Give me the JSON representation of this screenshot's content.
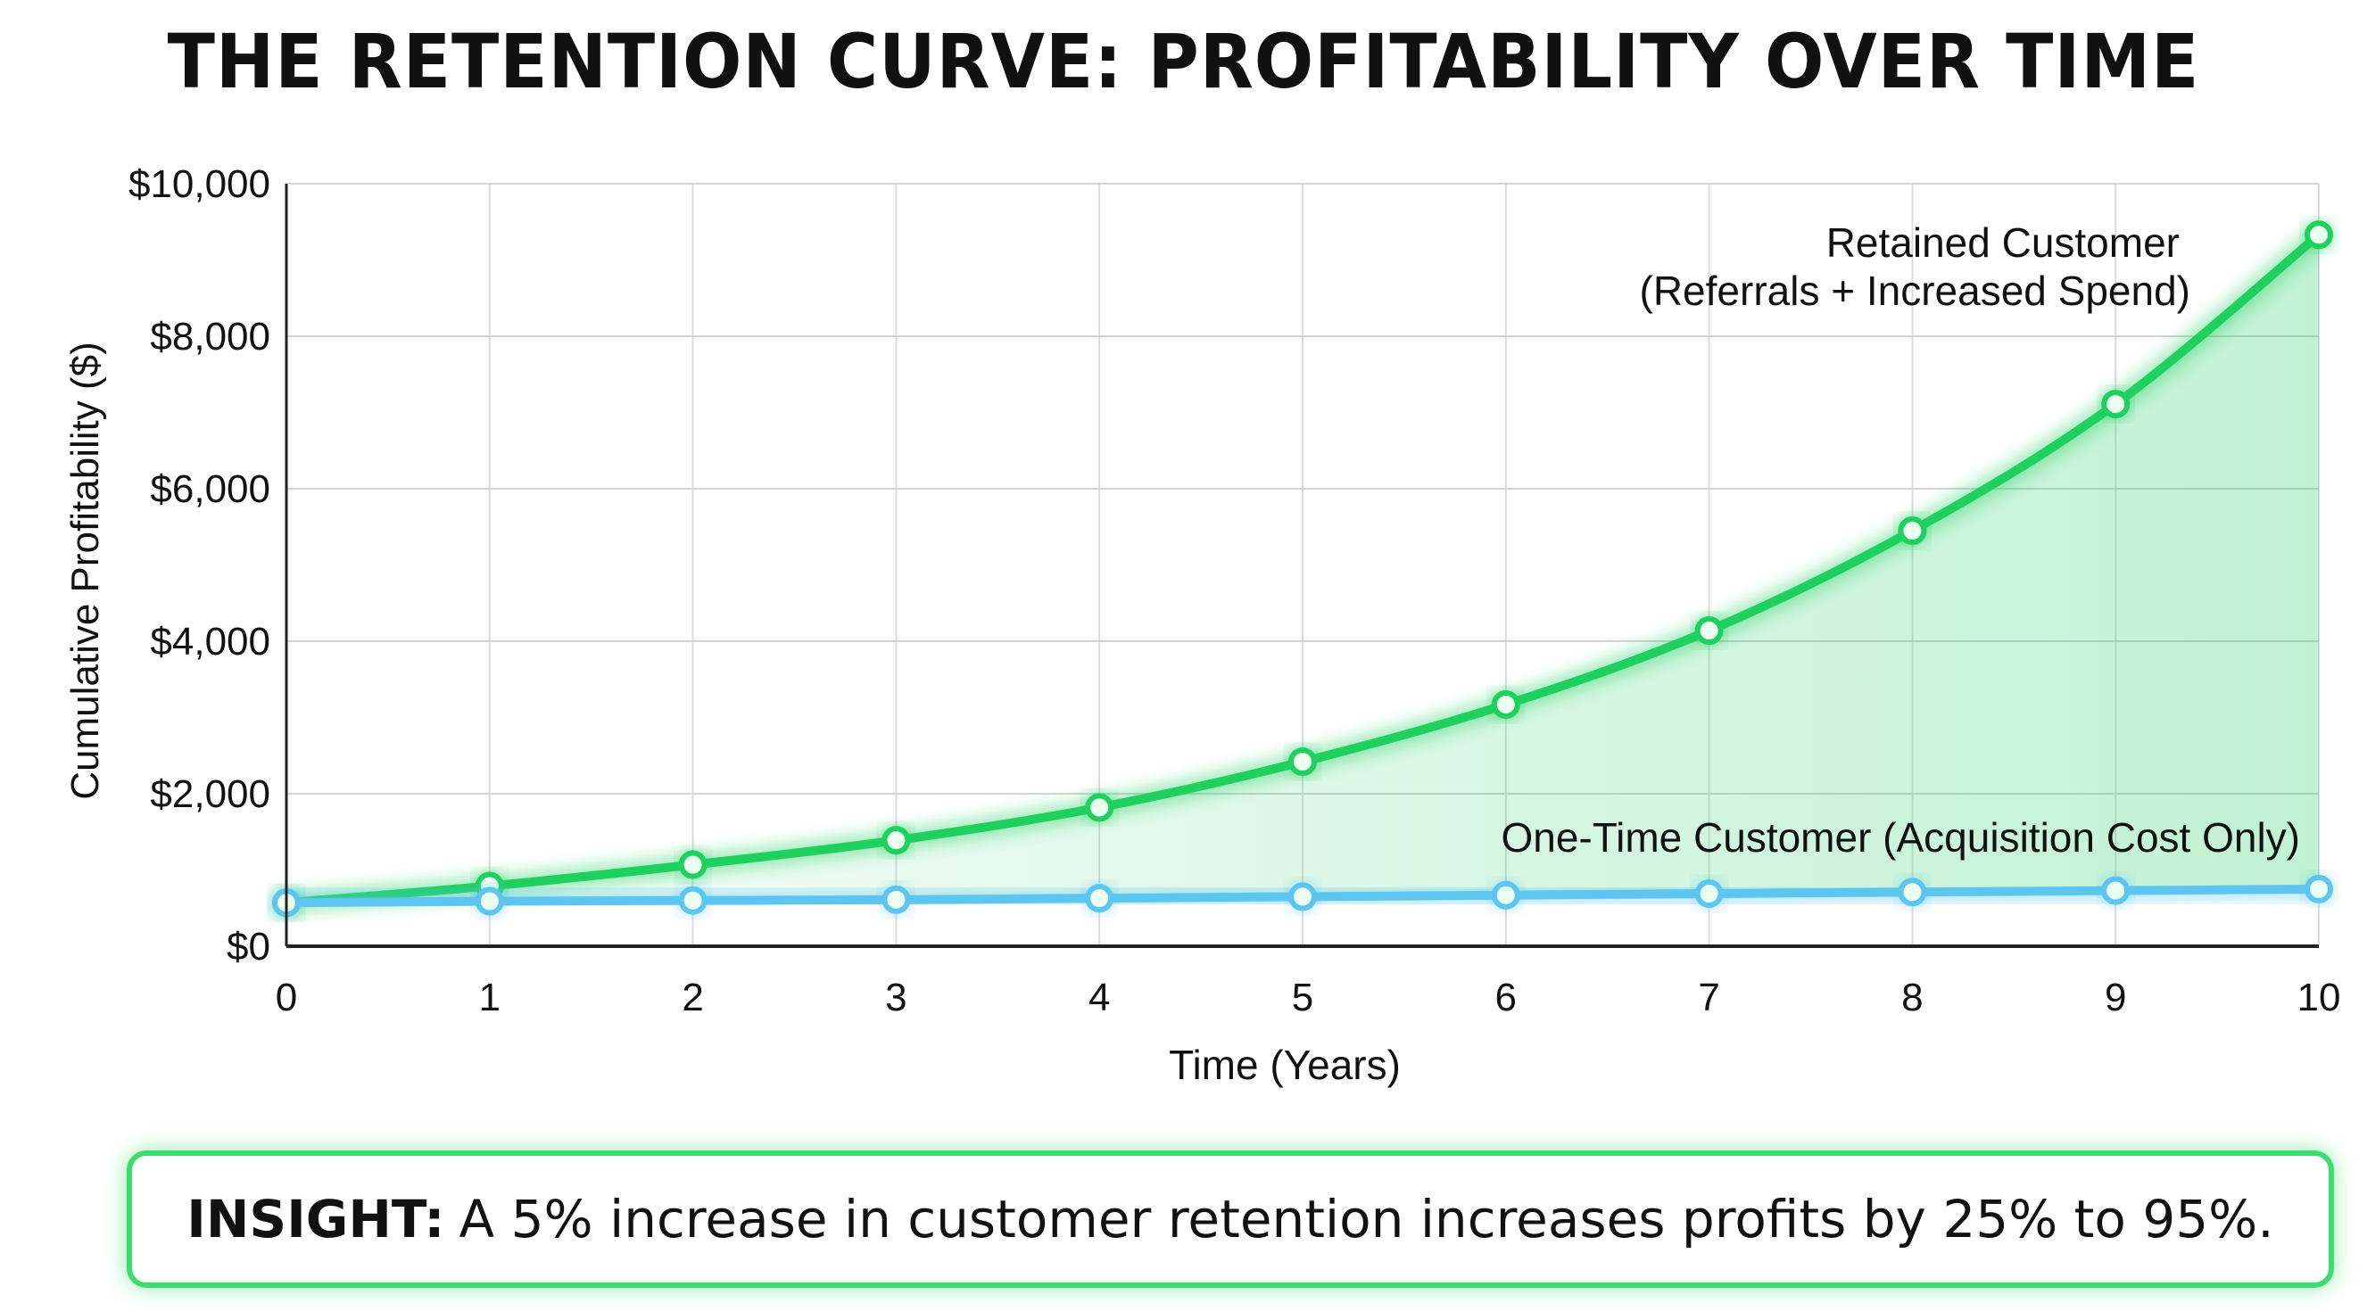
{
  "chart_data": {
    "type": "line",
    "title": "THE RETENTION CURVE: PROFITABILITY OVER TIME",
    "xlabel": "Time (Years)",
    "ylabel": "Cumulative Profitability ($)",
    "x": [
      0,
      1,
      2,
      3,
      4,
      5,
      6,
      7,
      8,
      9,
      10
    ],
    "xlim": [
      0,
      10
    ],
    "ylim": [
      0,
      10000
    ],
    "yticks": [
      0,
      2000,
      4000,
      6000,
      8000,
      10000
    ],
    "ytick_labels": [
      "$0",
      "$2,000",
      "$4,000",
      "$6,000",
      "$8,000",
      "$10,000"
    ],
    "xtick_labels": [
      "0",
      "1",
      "2",
      "3",
      "4",
      "5",
      "6",
      "7",
      "8",
      "9",
      "10"
    ],
    "grid": true,
    "series": [
      {
        "name": "Retained Customer (Referrals + Increased Spend)",
        "label_line1": "Retained Customer",
        "label_line2": "(Referrals + Increased Spend)",
        "color": "#1fd05f",
        "values": [
          570,
          790,
          1070,
          1390,
          1820,
          2420,
          3170,
          4140,
          5450,
          7110,
          9330
        ]
      },
      {
        "name": "One-Time Customer (Acquisition Cost Only)",
        "label_line1": "One-Time Customer (Acquisition Cost Only)",
        "color": "#5cc6f0",
        "values": [
          570,
          590,
          600,
          610,
          630,
          650,
          670,
          690,
          710,
          730,
          750
        ]
      }
    ]
  },
  "insight": {
    "label": "INSIGHT:",
    "text": "A 5% increase in customer retention increases profits by 25% to 95%."
  },
  "colors": {
    "accent_green": "#3ddc6e",
    "blue": "#5cc6f0"
  }
}
